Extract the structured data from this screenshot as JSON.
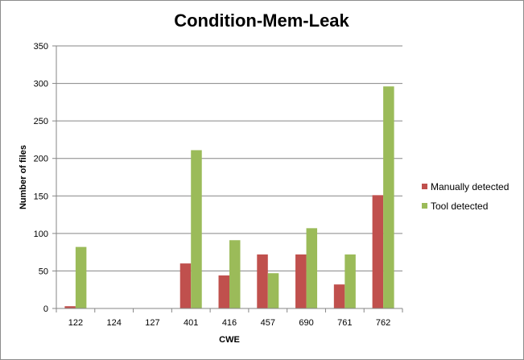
{
  "chart_data": {
    "type": "bar",
    "title": "Condition-Mem-Leak",
    "xlabel": "CWE",
    "ylabel": "Number of files",
    "categories": [
      "122",
      "124",
      "127",
      "401",
      "416",
      "457",
      "690",
      "761",
      "762"
    ],
    "series": [
      {
        "name": "Manually detected",
        "color": "#c0504d",
        "values": [
          3,
          0,
          0,
          60,
          44,
          72,
          72,
          32,
          151
        ]
      },
      {
        "name": "Tool detected",
        "color": "#9bbb59",
        "values": [
          82,
          0,
          0,
          211,
          91,
          47,
          107,
          72,
          296
        ]
      }
    ],
    "ylim": [
      0,
      350
    ],
    "yticks": [
      0,
      50,
      100,
      150,
      200,
      250,
      300,
      350
    ],
    "grid": true,
    "legend_position": "right"
  }
}
